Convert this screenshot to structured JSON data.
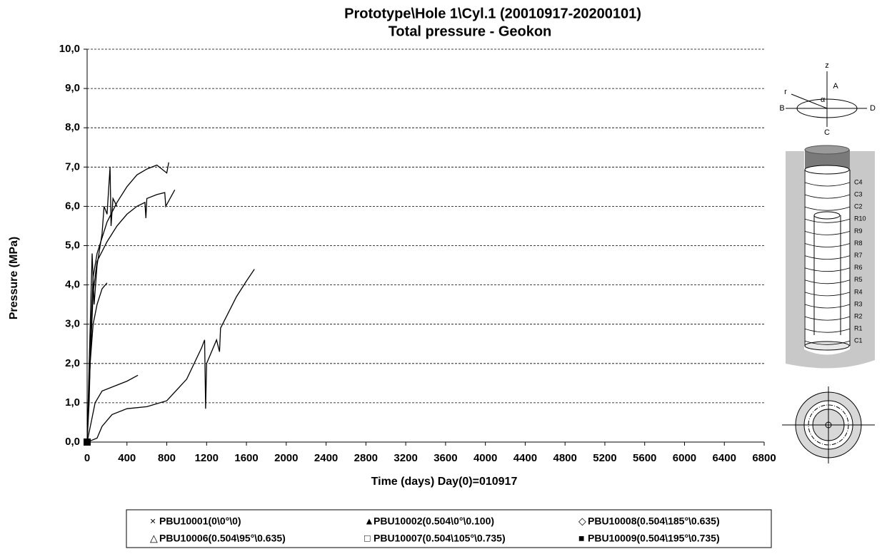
{
  "chart_data": {
    "type": "line",
    "title": "Prototype\\Hole 1\\Cyl.1 (20010917-20200101)",
    "subtitle": "Total pressure - Geokon",
    "x_label": "Time  (days)  Day(0)=010917",
    "y_label": "Pressure (MPa)",
    "xlim": [
      0,
      6800
    ],
    "xticks": [
      0,
      400,
      800,
      1200,
      1600,
      2000,
      2400,
      2800,
      3200,
      3600,
      4000,
      4400,
      4800,
      5200,
      5600,
      6000,
      6400,
      6800
    ],
    "ylim": [
      0,
      10
    ],
    "yticks": [
      {
        "value": 0,
        "label": "0,0"
      },
      {
        "value": 1,
        "label": "1,0"
      },
      {
        "value": 2,
        "label": "2,0"
      },
      {
        "value": 3,
        "label": "3,0"
      },
      {
        "value": 4,
        "label": "4,0"
      },
      {
        "value": 5,
        "label": "5,0"
      },
      {
        "value": 6,
        "label": "6,0"
      },
      {
        "value": 7,
        "label": "7,0"
      },
      {
        "value": 8,
        "label": "8,0"
      },
      {
        "value": 9,
        "label": "9,0"
      },
      {
        "value": 10,
        "label": "10,0"
      }
    ],
    "grid": true,
    "legend": "bottom",
    "series": [
      {
        "name": "PBU10001(0\\0°\\0)",
        "marker": "×",
        "color": "#000000",
        "x": [
          0,
          100,
          150,
          250,
          400,
          600,
          800,
          1000,
          1150,
          1180,
          1190,
          1200,
          1300,
          1330,
          1340,
          1400,
          1500,
          1600,
          1680
        ],
        "values": [
          0,
          0.1,
          0.4,
          0.7,
          0.85,
          0.9,
          1.05,
          1.6,
          2.4,
          2.6,
          0.85,
          2.0,
          2.6,
          2.3,
          2.9,
          3.2,
          3.7,
          4.1,
          4.4
        ]
      },
      {
        "name": "PBU10002(0.504\\0°\\0.100)",
        "marker": "▲",
        "color": "#000000",
        "x": [
          0,
          20,
          40,
          60,
          100,
          200,
          300,
          400,
          500,
          600,
          700,
          800,
          820
        ],
        "values": [
          0,
          1,
          3,
          4.2,
          4.8,
          5.6,
          6.1,
          6.5,
          6.8,
          6.95,
          7.05,
          6.85,
          7.12
        ]
      },
      {
        "name": "PBU10008(0.504\\185°\\0.635)",
        "marker": "◇",
        "color": "#000000",
        "x": [
          0,
          30,
          60,
          100,
          200,
          300,
          400,
          500,
          580,
          590,
          600,
          700,
          780,
          790,
          880
        ],
        "values": [
          0,
          2,
          3.8,
          4.6,
          5.1,
          5.5,
          5.8,
          6.0,
          6.1,
          5.7,
          6.2,
          6.3,
          6.35,
          6.0,
          6.42
        ]
      },
      {
        "name": "PBU10006(0.504\\95°\\0.635)",
        "marker": "△",
        "color": "#000000",
        "x": [
          0,
          30,
          60,
          100,
          150,
          200
        ],
        "values": [
          0,
          2,
          3,
          3.5,
          3.9,
          4.05
        ]
      },
      {
        "name": "PBU10007(0.504\\105°\\0.735)",
        "marker": "□",
        "color": "#000000",
        "x": [
          0,
          40,
          80,
          150,
          300,
          400,
          510
        ],
        "values": [
          0,
          0.5,
          1.0,
          1.3,
          1.45,
          1.55,
          1.7
        ]
      },
      {
        "name": "PBU10009(0.504\\195°\\0.735)",
        "marker": "■",
        "color": "#000000",
        "x": [
          0,
          50,
          70,
          100,
          150,
          170,
          200,
          230,
          240,
          260,
          300
        ],
        "values": [
          0,
          4.8,
          3.5,
          4.5,
          5.3,
          6.0,
          5.8,
          7.0,
          5.5,
          6.2,
          6.0
        ]
      }
    ]
  },
  "diagram": {
    "axis_labels": [
      "z",
      "A",
      "r",
      "α",
      "B",
      "D",
      "C"
    ],
    "layer_labels": [
      "C4",
      "C3",
      "C2",
      "R10",
      "R9",
      "R8",
      "R7",
      "R6",
      "R5",
      "R4",
      "R3",
      "R2",
      "R1",
      "C1"
    ]
  }
}
